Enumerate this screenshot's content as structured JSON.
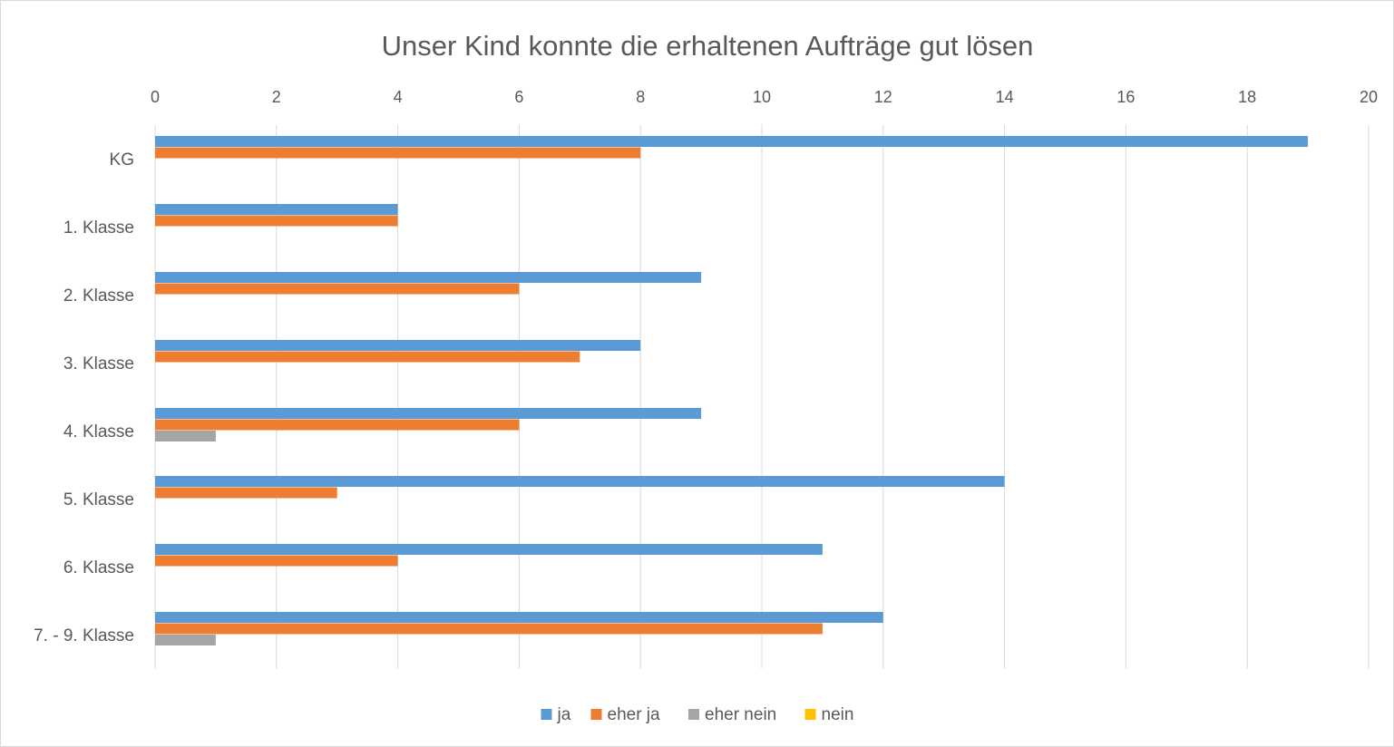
{
  "chart_data": {
    "type": "bar",
    "orientation": "horizontal",
    "title": "Unser Kind konnte die erhaltenen Aufträge gut lösen",
    "categories": [
      "KG",
      "1. Klasse",
      "2. Klasse",
      "3. Klasse",
      "4. Klasse",
      "5. Klasse",
      "6. Klasse",
      "7. - 9. Klasse"
    ],
    "series": [
      {
        "name": "ja",
        "color": "#5b9bd5",
        "values": [
          19,
          4,
          9,
          8,
          9,
          14,
          11,
          12
        ]
      },
      {
        "name": "eher ja",
        "color": "#ed7d31",
        "values": [
          8,
          4,
          6,
          7,
          6,
          3,
          4,
          11
        ]
      },
      {
        "name": "eher nein",
        "color": "#a5a5a5",
        "values": [
          0,
          0,
          0,
          0,
          1,
          0,
          0,
          1
        ]
      },
      {
        "name": "nein",
        "color": "#ffc000",
        "values": [
          0,
          0,
          0,
          0,
          0,
          0,
          0,
          0
        ]
      }
    ],
    "xlim": [
      0,
      20
    ],
    "xticks": [
      0,
      2,
      4,
      6,
      8,
      10,
      12,
      14,
      16,
      18,
      20
    ],
    "grid": true,
    "legend": "bottom"
  }
}
